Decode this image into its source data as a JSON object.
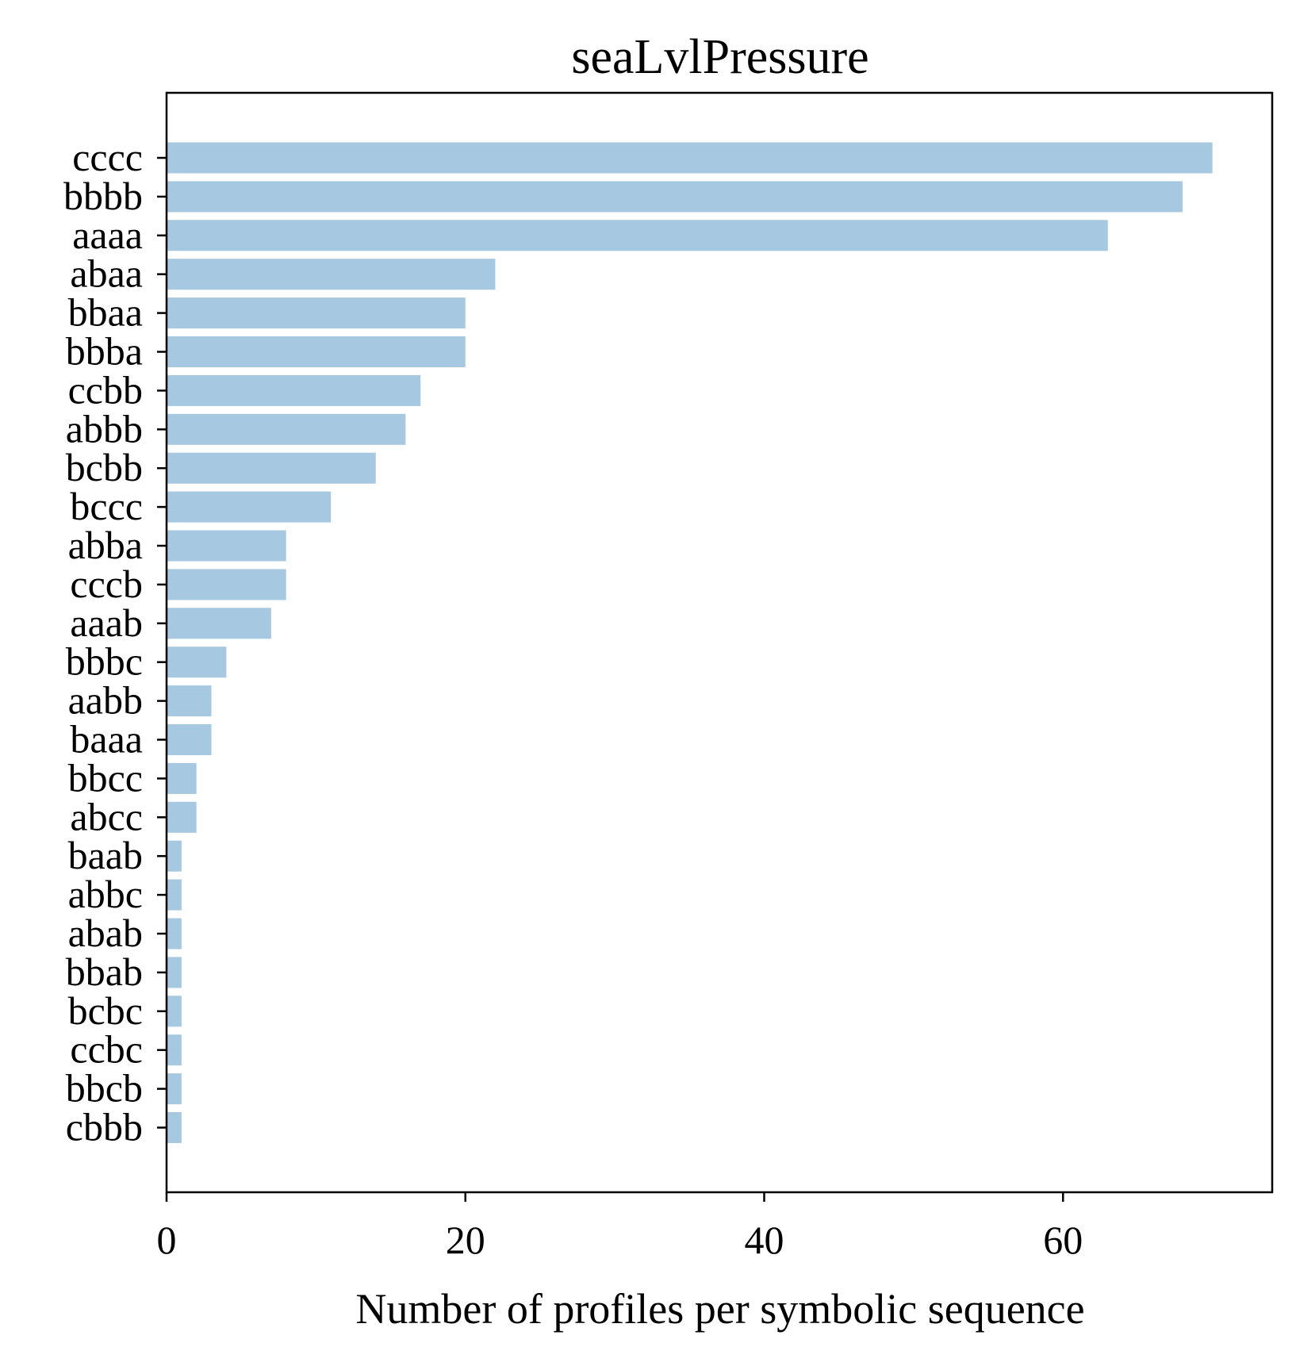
{
  "chart_data": {
    "type": "bar",
    "orientation": "horizontal",
    "title": "seaLvlPressure",
    "xlabel": "Number of profiles per symbolic sequence",
    "ylabel": "",
    "xlim": [
      0,
      74
    ],
    "xticks": [
      0,
      20,
      40,
      60
    ],
    "bar_color": "#a6c8e0",
    "grid": false,
    "categories": [
      "cccc",
      "bbbb",
      "aaaa",
      "abaa",
      "bbaa",
      "bbba",
      "ccbb",
      "abbb",
      "bcbb",
      "bccc",
      "abba",
      "cccb",
      "aaab",
      "bbbc",
      "aabb",
      "baaa",
      "bbcc",
      "abcc",
      "baab",
      "abbc",
      "abab",
      "bbab",
      "bcbc",
      "ccbc",
      "bbcb",
      "cbbb"
    ],
    "values": [
      70,
      68,
      63,
      22,
      20,
      20,
      17,
      16,
      14,
      11,
      8,
      8,
      7,
      4,
      3,
      3,
      2,
      2,
      1,
      1,
      1,
      1,
      1,
      1,
      1,
      1
    ]
  }
}
